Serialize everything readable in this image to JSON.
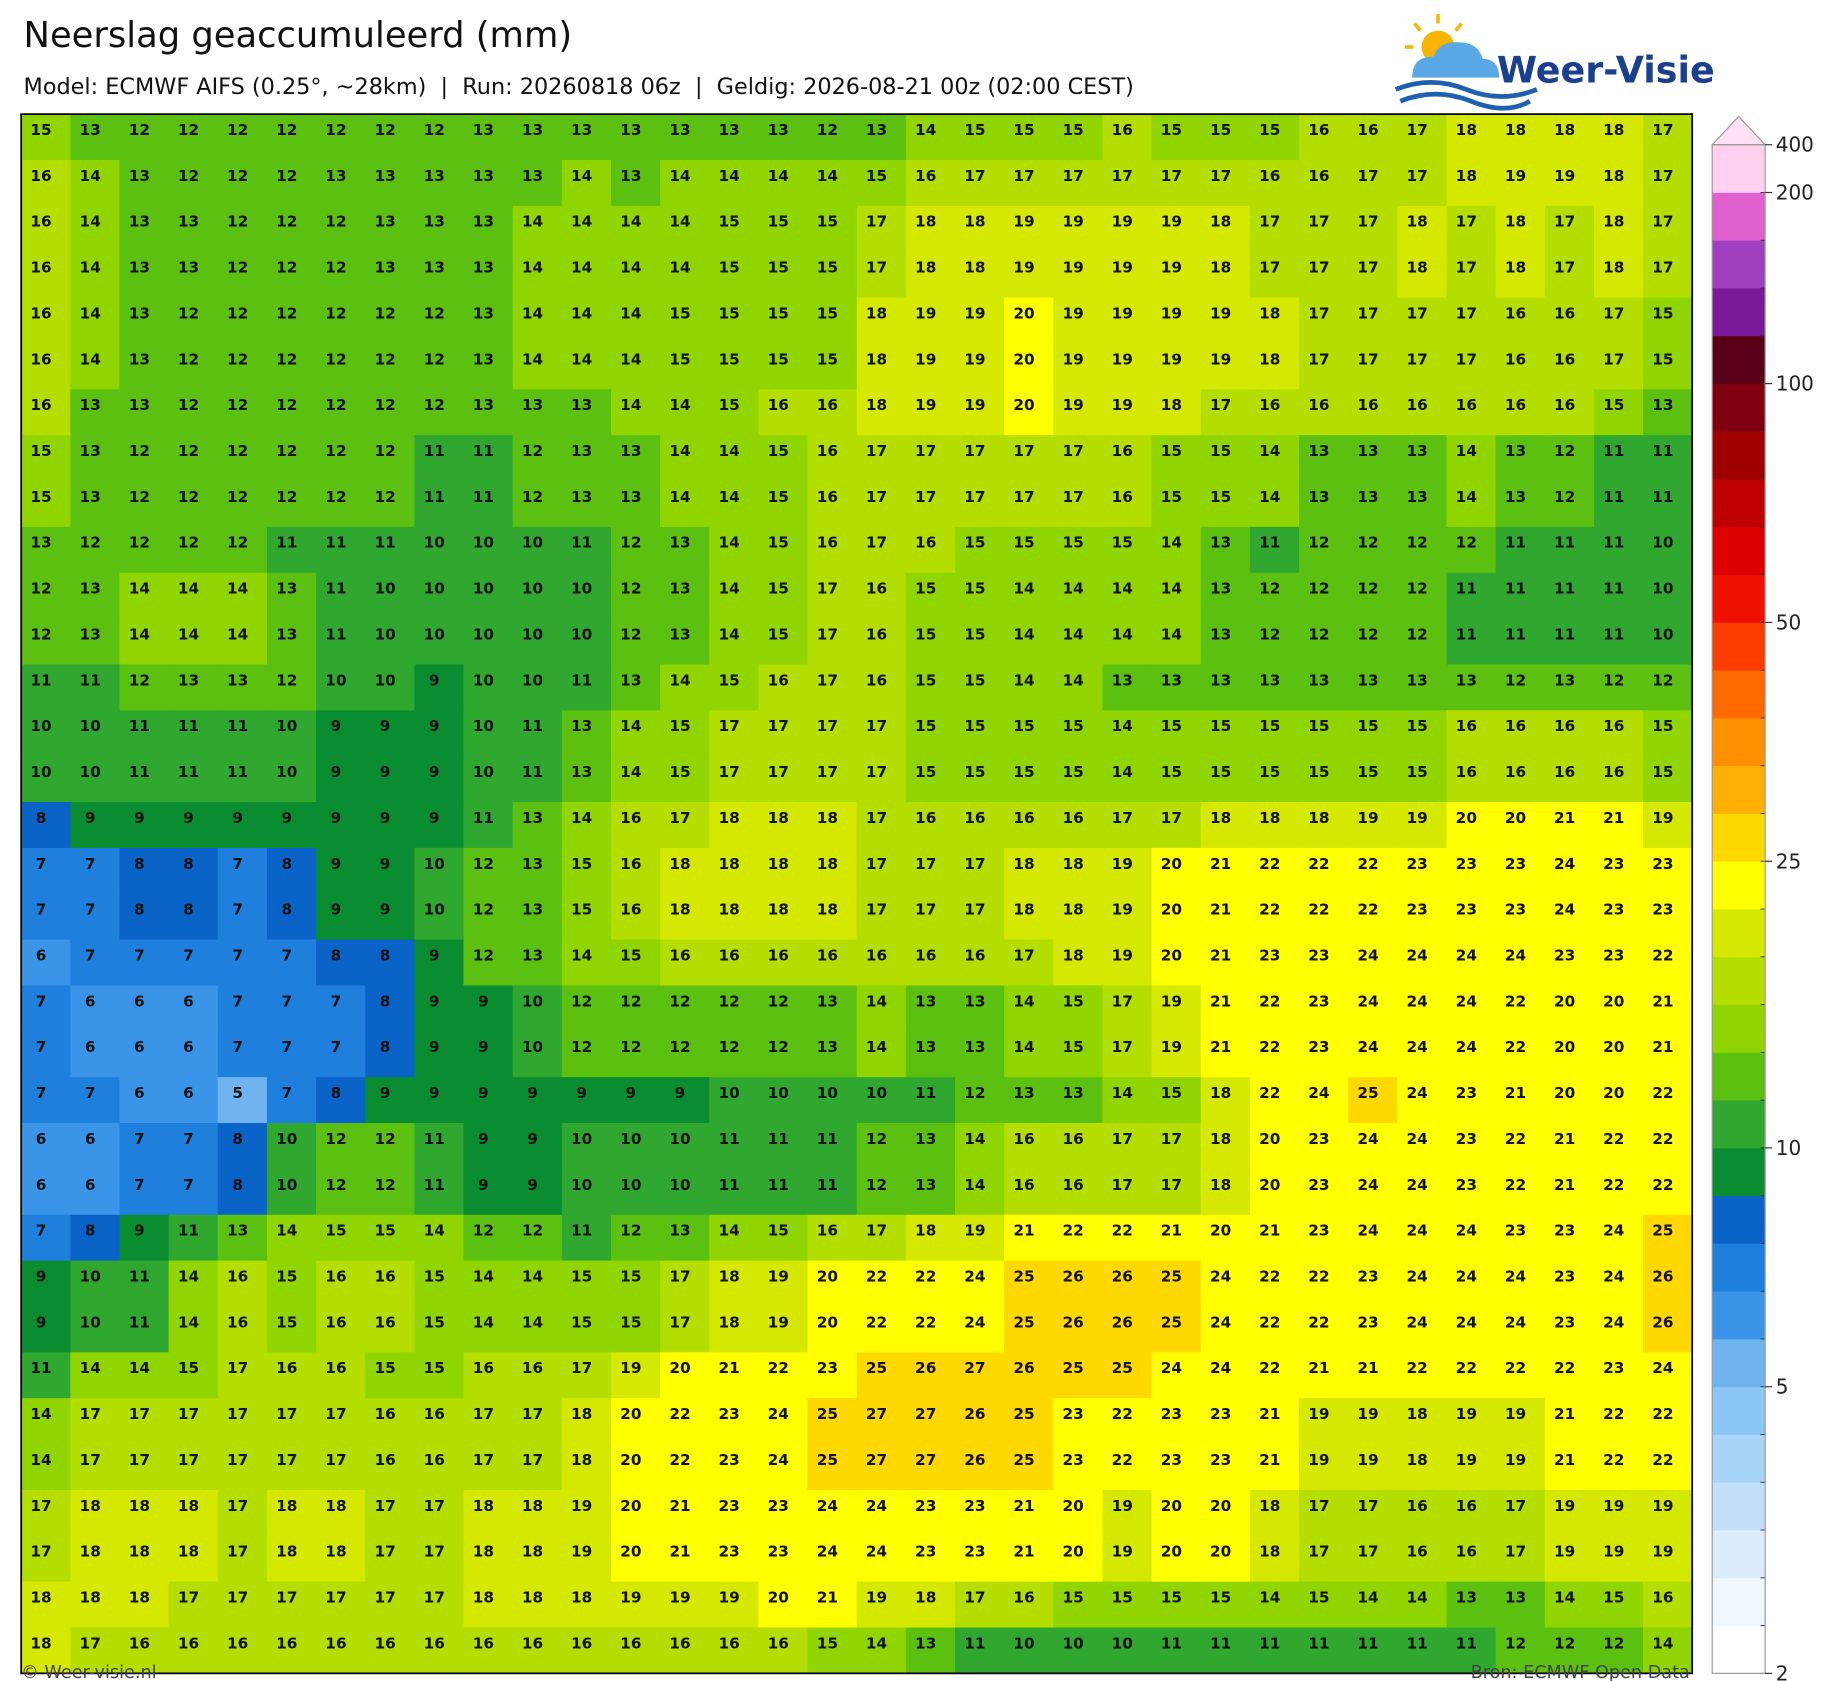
{
  "header": {
    "title": "Neerslag geaccumuleerd (mm)",
    "subtitle": "Model: ECMWF AIFS (0.25°, ~28km)  |  Run: 20260818 06z  |  Geldig: 2026-08-21 00z (02:00 CEST)"
  },
  "logo": {
    "text": "Weer-Visie"
  },
  "grid": {
    "rows": [
      [
        15,
        13,
        12,
        12,
        12,
        12,
        12,
        12,
        12,
        13,
        13,
        13,
        13,
        13,
        13,
        13,
        12,
        13,
        14,
        15,
        15,
        15,
        16,
        15,
        15,
        15,
        16,
        16,
        17,
        18,
        18,
        18,
        18,
        17
      ],
      [
        16,
        14,
        13,
        12,
        12,
        12,
        13,
        13,
        13,
        13,
        13,
        14,
        13,
        14,
        14,
        14,
        14,
        15,
        16,
        17,
        17,
        17,
        17,
        17,
        17,
        16,
        16,
        17,
        17,
        18,
        19,
        19,
        18,
        17
      ],
      [
        16,
        14,
        13,
        13,
        12,
        12,
        12,
        13,
        13,
        13,
        14,
        14,
        14,
        14,
        15,
        15,
        15,
        17,
        18,
        18,
        19,
        19,
        19,
        19,
        18,
        17,
        17,
        17,
        18,
        17,
        18,
        17,
        18,
        17
      ],
      [
        16,
        14,
        13,
        13,
        12,
        12,
        12,
        13,
        13,
        13,
        14,
        14,
        14,
        14,
        15,
        15,
        15,
        17,
        18,
        18,
        19,
        19,
        19,
        19,
        18,
        17,
        17,
        17,
        18,
        17,
        18,
        17,
        18,
        17
      ],
      [
        16,
        14,
        13,
        12,
        12,
        12,
        12,
        12,
        12,
        13,
        14,
        14,
        14,
        15,
        15,
        15,
        15,
        18,
        19,
        19,
        20,
        19,
        19,
        19,
        19,
        18,
        17,
        17,
        17,
        17,
        16,
        16,
        17,
        15
      ],
      [
        16,
        14,
        13,
        12,
        12,
        12,
        12,
        12,
        12,
        13,
        14,
        14,
        14,
        15,
        15,
        15,
        15,
        18,
        19,
        19,
        20,
        19,
        19,
        19,
        19,
        18,
        17,
        17,
        17,
        17,
        16,
        16,
        17,
        15
      ],
      [
        16,
        13,
        13,
        12,
        12,
        12,
        12,
        12,
        12,
        13,
        13,
        13,
        14,
        14,
        15,
        16,
        16,
        18,
        19,
        19,
        20,
        19,
        19,
        18,
        17,
        16,
        16,
        16,
        16,
        16,
        16,
        16,
        15,
        13
      ],
      [
        15,
        13,
        12,
        12,
        12,
        12,
        12,
        12,
        11,
        11,
        12,
        13,
        13,
        14,
        14,
        15,
        16,
        17,
        17,
        17,
        17,
        17,
        16,
        15,
        15,
        14,
        13,
        13,
        13,
        14,
        13,
        12,
        11,
        11
      ],
      [
        15,
        13,
        12,
        12,
        12,
        12,
        12,
        12,
        11,
        11,
        12,
        13,
        13,
        14,
        14,
        15,
        16,
        17,
        17,
        17,
        17,
        17,
        16,
        15,
        15,
        14,
        13,
        13,
        13,
        14,
        13,
        12,
        11,
        11
      ],
      [
        13,
        12,
        12,
        12,
        12,
        11,
        11,
        11,
        10,
        10,
        10,
        11,
        12,
        13,
        14,
        15,
        16,
        17,
        16,
        15,
        15,
        15,
        15,
        14,
        13,
        11,
        12,
        12,
        12,
        12,
        11,
        11,
        11,
        10
      ],
      [
        12,
        13,
        14,
        14,
        14,
        13,
        11,
        10,
        10,
        10,
        10,
        10,
        12,
        13,
        14,
        15,
        17,
        16,
        15,
        15,
        14,
        14,
        14,
        14,
        13,
        12,
        12,
        12,
        12,
        11,
        11,
        11,
        11,
        10
      ],
      [
        12,
        13,
        14,
        14,
        14,
        13,
        11,
        10,
        10,
        10,
        10,
        10,
        12,
        13,
        14,
        15,
        17,
        16,
        15,
        15,
        14,
        14,
        14,
        14,
        13,
        12,
        12,
        12,
        12,
        11,
        11,
        11,
        11,
        10
      ],
      [
        11,
        11,
        12,
        13,
        13,
        12,
        10,
        10,
        9,
        10,
        10,
        11,
        13,
        14,
        15,
        16,
        17,
        16,
        15,
        15,
        14,
        14,
        13,
        13,
        13,
        13,
        13,
        13,
        13,
        13,
        12,
        13,
        12,
        12
      ],
      [
        10,
        10,
        11,
        11,
        11,
        10,
        9,
        9,
        9,
        10,
        11,
        13,
        14,
        15,
        17,
        17,
        17,
        17,
        15,
        15,
        15,
        15,
        14,
        15,
        15,
        15,
        15,
        15,
        15,
        16,
        16,
        16,
        16,
        15
      ],
      [
        10,
        10,
        11,
        11,
        11,
        10,
        9,
        9,
        9,
        10,
        11,
        13,
        14,
        15,
        17,
        17,
        17,
        17,
        15,
        15,
        15,
        15,
        14,
        15,
        15,
        15,
        15,
        15,
        15,
        16,
        16,
        16,
        16,
        15
      ],
      [
        8,
        9,
        9,
        9,
        9,
        9,
        9,
        9,
        9,
        11,
        13,
        14,
        16,
        17,
        18,
        18,
        18,
        17,
        16,
        16,
        16,
        16,
        17,
        17,
        18,
        18,
        18,
        19,
        19,
        20,
        20,
        21,
        21,
        19
      ],
      [
        7,
        7,
        8,
        8,
        7,
        8,
        9,
        9,
        10,
        12,
        13,
        15,
        16,
        18,
        18,
        18,
        18,
        17,
        17,
        17,
        18,
        18,
        19,
        20,
        21,
        22,
        22,
        22,
        23,
        23,
        23,
        24,
        23,
        23
      ],
      [
        7,
        7,
        8,
        8,
        7,
        8,
        9,
        9,
        10,
        12,
        13,
        15,
        16,
        18,
        18,
        18,
        18,
        17,
        17,
        17,
        18,
        18,
        19,
        20,
        21,
        22,
        22,
        22,
        23,
        23,
        23,
        24,
        23,
        23
      ],
      [
        6,
        7,
        7,
        7,
        7,
        7,
        8,
        8,
        9,
        12,
        13,
        14,
        15,
        16,
        16,
        16,
        16,
        16,
        16,
        16,
        17,
        18,
        19,
        20,
        21,
        23,
        23,
        24,
        24,
        24,
        24,
        23,
        23,
        22
      ],
      [
        7,
        6,
        6,
        6,
        7,
        7,
        7,
        8,
        9,
        9,
        10,
        12,
        12,
        12,
        12,
        12,
        13,
        14,
        13,
        13,
        14,
        15,
        17,
        19,
        21,
        22,
        23,
        24,
        24,
        24,
        22,
        20,
        20,
        21
      ],
      [
        7,
        6,
        6,
        6,
        7,
        7,
        7,
        8,
        9,
        9,
        10,
        12,
        12,
        12,
        12,
        12,
        13,
        14,
        13,
        13,
        14,
        15,
        17,
        19,
        21,
        22,
        23,
        24,
        24,
        24,
        22,
        20,
        20,
        21
      ],
      [
        7,
        7,
        6,
        6,
        5,
        7,
        8,
        9,
        9,
        9,
        9,
        9,
        9,
        9,
        10,
        10,
        10,
        10,
        11,
        12,
        13,
        13,
        14,
        15,
        18,
        22,
        24,
        25,
        24,
        23,
        21,
        20,
        20,
        22
      ],
      [
        6,
        6,
        7,
        7,
        8,
        10,
        12,
        12,
        11,
        9,
        9,
        10,
        10,
        10,
        11,
        11,
        11,
        12,
        13,
        14,
        16,
        16,
        17,
        17,
        18,
        20,
        23,
        24,
        24,
        23,
        22,
        21,
        22,
        22
      ],
      [
        6,
        6,
        7,
        7,
        8,
        10,
        12,
        12,
        11,
        9,
        9,
        10,
        10,
        10,
        11,
        11,
        11,
        12,
        13,
        14,
        16,
        16,
        17,
        17,
        18,
        20,
        23,
        24,
        24,
        23,
        22,
        21,
        22,
        22
      ],
      [
        7,
        8,
        9,
        11,
        13,
        14,
        15,
        15,
        14,
        12,
        12,
        11,
        12,
        13,
        14,
        15,
        16,
        17,
        18,
        19,
        21,
        22,
        22,
        21,
        20,
        21,
        23,
        24,
        24,
        24,
        23,
        23,
        24,
        25
      ],
      [
        9,
        10,
        11,
        14,
        16,
        15,
        16,
        16,
        15,
        14,
        14,
        15,
        15,
        17,
        18,
        19,
        20,
        22,
        22,
        24,
        25,
        26,
        26,
        25,
        24,
        22,
        22,
        23,
        24,
        24,
        24,
        23,
        24,
        26
      ],
      [
        9,
        10,
        11,
        14,
        16,
        15,
        16,
        16,
        15,
        14,
        14,
        15,
        15,
        17,
        18,
        19,
        20,
        22,
        22,
        24,
        25,
        26,
        26,
        25,
        24,
        22,
        22,
        23,
        24,
        24,
        24,
        23,
        24,
        26
      ],
      [
        11,
        14,
        14,
        15,
        17,
        16,
        16,
        15,
        15,
        16,
        16,
        17,
        19,
        20,
        21,
        22,
        23,
        25,
        26,
        27,
        26,
        25,
        25,
        24,
        24,
        22,
        21,
        21,
        22,
        22,
        22,
        22,
        23,
        24
      ],
      [
        14,
        17,
        17,
        17,
        17,
        17,
        17,
        16,
        16,
        17,
        17,
        18,
        20,
        22,
        23,
        24,
        25,
        27,
        27,
        26,
        25,
        23,
        22,
        23,
        23,
        21,
        19,
        19,
        18,
        19,
        19,
        21,
        22,
        22
      ],
      [
        14,
        17,
        17,
        17,
        17,
        17,
        17,
        16,
        16,
        17,
        17,
        18,
        20,
        22,
        23,
        24,
        25,
        27,
        27,
        26,
        25,
        23,
        22,
        23,
        23,
        21,
        19,
        19,
        18,
        19,
        19,
        21,
        22,
        22
      ],
      [
        17,
        18,
        18,
        18,
        17,
        18,
        18,
        17,
        17,
        18,
        18,
        19,
        20,
        21,
        23,
        23,
        24,
        24,
        23,
        23,
        21,
        20,
        19,
        20,
        20,
        18,
        17,
        17,
        16,
        16,
        17,
        19,
        19,
        19
      ],
      [
        17,
        18,
        18,
        18,
        17,
        18,
        18,
        17,
        17,
        18,
        18,
        19,
        20,
        21,
        23,
        23,
        24,
        24,
        23,
        23,
        21,
        20,
        19,
        20,
        20,
        18,
        17,
        17,
        16,
        16,
        17,
        19,
        19,
        19
      ],
      [
        18,
        18,
        18,
        17,
        17,
        17,
        17,
        17,
        17,
        18,
        18,
        18,
        19,
        19,
        19,
        20,
        21,
        19,
        18,
        17,
        16,
        15,
        15,
        15,
        15,
        14,
        15,
        14,
        14,
        13,
        13,
        14,
        15,
        16
      ],
      [
        18,
        17,
        16,
        16,
        16,
        16,
        16,
        16,
        16,
        16,
        16,
        16,
        16,
        16,
        16,
        16,
        15,
        14,
        13,
        11,
        10,
        10,
        10,
        11,
        11,
        11,
        11,
        11,
        11,
        11,
        12,
        12,
        12,
        14
      ]
    ]
  },
  "colorbar": {
    "levels": [
      2,
      2.5,
      3,
      3.5,
      4,
      4.5,
      5,
      6,
      7,
      8,
      9,
      10,
      12,
      14,
      16,
      18,
      20,
      25,
      30,
      35,
      40,
      45,
      50,
      60,
      70,
      80,
      90,
      100,
      125,
      150,
      175,
      200,
      400
    ],
    "colors": [
      "#ffffff",
      "#eef6fe",
      "#dcecfc",
      "#c2e0fa",
      "#a8d4f8",
      "#8cc6f4",
      "#6fb4ee",
      "#3a95e8",
      "#1e7fdc",
      "#0a64c8",
      "#0a8c30",
      "#30a830",
      "#5cc010",
      "#90d400",
      "#b4dd00",
      "#d4e800",
      "#ffff00",
      "#ffd800",
      "#ffb000",
      "#ff9000",
      "#ff6a00",
      "#ff3c00",
      "#f01000",
      "#dc0000",
      "#c00000",
      "#a00000",
      "#800010",
      "#5a0018",
      "#7a1a9a",
      "#a040c0",
      "#e060d0",
      "#ffd0f0"
    ],
    "extend_color": "#ffe0f5",
    "ticks": [
      2,
      5,
      10,
      25,
      50,
      100,
      200,
      400
    ]
  },
  "footer": {
    "left": "© Weer-visie.nl",
    "right": "Bron: ECMWF Open Data"
  }
}
